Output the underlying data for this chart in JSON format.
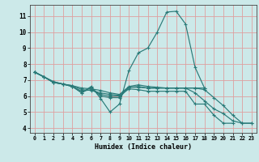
{
  "xlabel": "Humidex (Indice chaleur)",
  "xlim": [
    -0.5,
    23.5
  ],
  "ylim": [
    3.7,
    11.7
  ],
  "xticks": [
    0,
    1,
    2,
    3,
    4,
    5,
    6,
    7,
    8,
    9,
    10,
    11,
    12,
    13,
    14,
    15,
    16,
    17,
    18,
    19,
    20,
    21,
    22,
    23
  ],
  "yticks": [
    4,
    5,
    6,
    7,
    8,
    9,
    10,
    11
  ],
  "bg_color": "#cce9e9",
  "grid_color": "#dea0a0",
  "line_color": "#2a7a78",
  "lines": [
    {
      "x": [
        0,
        1,
        2,
        3,
        4,
        5,
        6,
        7,
        8,
        9,
        10,
        11,
        12,
        13,
        14,
        15,
        16,
        17,
        18
      ],
      "y": [
        7.5,
        7.2,
        6.85,
        6.75,
        6.6,
        6.2,
        6.6,
        5.85,
        5.0,
        5.5,
        7.6,
        8.7,
        9.0,
        10.0,
        11.25,
        11.3,
        10.5,
        7.8,
        6.5
      ]
    },
    {
      "x": [
        0,
        1,
        2,
        3,
        4,
        5,
        6,
        7,
        8,
        9,
        10,
        11,
        12,
        13,
        14,
        15,
        16,
        17,
        18
      ],
      "y": [
        7.5,
        7.2,
        6.85,
        6.75,
        6.6,
        6.2,
        6.55,
        6.0,
        5.9,
        5.9,
        6.55,
        6.55,
        6.5,
        6.5,
        6.5,
        6.5,
        6.5,
        6.5,
        6.5
      ]
    },
    {
      "x": [
        0,
        1,
        2,
        3,
        4,
        5,
        6,
        7,
        8,
        9,
        10,
        11,
        12,
        13,
        14,
        15,
        16,
        17,
        18,
        19,
        20,
        21
      ],
      "y": [
        7.5,
        7.2,
        6.85,
        6.75,
        6.6,
        6.3,
        6.4,
        6.1,
        6.0,
        6.0,
        6.45,
        6.4,
        6.3,
        6.3,
        6.3,
        6.3,
        6.3,
        5.5,
        5.5,
        4.8,
        4.3,
        4.3
      ]
    },
    {
      "x": [
        0,
        1,
        2,
        3,
        4,
        5,
        6,
        7,
        8,
        9,
        10,
        11,
        12,
        13,
        14,
        15,
        16,
        17,
        18,
        19,
        20,
        21,
        22,
        23
      ],
      "y": [
        7.5,
        7.2,
        6.9,
        6.75,
        6.65,
        6.4,
        6.35,
        6.2,
        6.1,
        6.05,
        6.55,
        6.6,
        6.5,
        6.5,
        6.5,
        6.5,
        6.5,
        6.2,
        5.7,
        5.2,
        4.9,
        4.45,
        4.3,
        4.3
      ]
    },
    {
      "x": [
        0,
        2,
        3,
        4,
        5,
        6,
        7,
        8,
        9,
        10,
        11,
        12,
        13,
        14,
        15,
        16,
        17,
        18,
        19,
        20,
        21,
        22,
        23
      ],
      "y": [
        7.5,
        6.9,
        6.75,
        6.65,
        6.5,
        6.45,
        6.35,
        6.2,
        6.1,
        6.6,
        6.7,
        6.6,
        6.55,
        6.5,
        6.5,
        6.5,
        6.5,
        6.4,
        5.9,
        5.4,
        4.8,
        4.3,
        4.3
      ]
    }
  ]
}
